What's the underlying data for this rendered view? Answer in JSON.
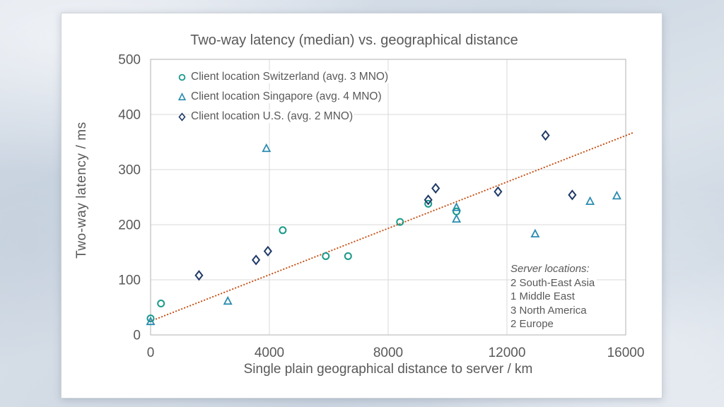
{
  "chart_data": {
    "type": "scatter",
    "title": "Two-way latency (median) vs. geographical distance",
    "xlabel": "Single plain geographical distance to server / km",
    "ylabel": "Two-way latency / ms",
    "xlim": [
      0,
      16000
    ],
    "ylim": [
      0,
      500
    ],
    "x_ticks": [
      0,
      4000,
      8000,
      12000,
      16000
    ],
    "y_ticks": [
      0,
      100,
      200,
      300,
      400,
      500
    ],
    "grid": true,
    "grid_color": "#d9d9d9",
    "axis_color": "#bfbfbf",
    "text_color": "#595959",
    "legend_position": "top-left-inside",
    "series": [
      {
        "name": "Client location Switzerland (avg. 3 MNO)",
        "marker": "circle",
        "color": "#1A9A8A",
        "points": [
          [
            0,
            30
          ],
          [
            350,
            57
          ],
          [
            4450,
            190
          ],
          [
            5900,
            143
          ],
          [
            6650,
            143
          ],
          [
            8400,
            205
          ],
          [
            9350,
            238
          ],
          [
            10300,
            224
          ]
        ]
      },
      {
        "name": "Client location Singapore (avg. 4 MNO)",
        "marker": "triangle",
        "color": "#2B8CB0",
        "points": [
          [
            0,
            24
          ],
          [
            2600,
            61
          ],
          [
            3900,
            338
          ],
          [
            10300,
            231
          ],
          [
            10300,
            210
          ],
          [
            12950,
            183
          ],
          [
            14800,
            242
          ],
          [
            15700,
            252
          ]
        ]
      },
      {
        "name": "Client location U.S. (avg. 2 MNO)",
        "marker": "diamond",
        "color": "#1F3A68",
        "points": [
          [
            1630,
            108
          ],
          [
            3550,
            136
          ],
          [
            3950,
            152
          ],
          [
            9350,
            245
          ],
          [
            9600,
            266
          ],
          [
            11700,
            260
          ],
          [
            13300,
            362
          ],
          [
            14200,
            254
          ]
        ]
      }
    ],
    "trendline": {
      "color": "#C8551B",
      "style": "dotted",
      "from": [
        0,
        25
      ],
      "to": [
        16300,
        368
      ]
    },
    "annotation": {
      "title": "Server locations:",
      "lines": [
        "2 South-East Asia",
        "1 Middle East",
        "3 North America",
        "2 Europe"
      ]
    }
  }
}
